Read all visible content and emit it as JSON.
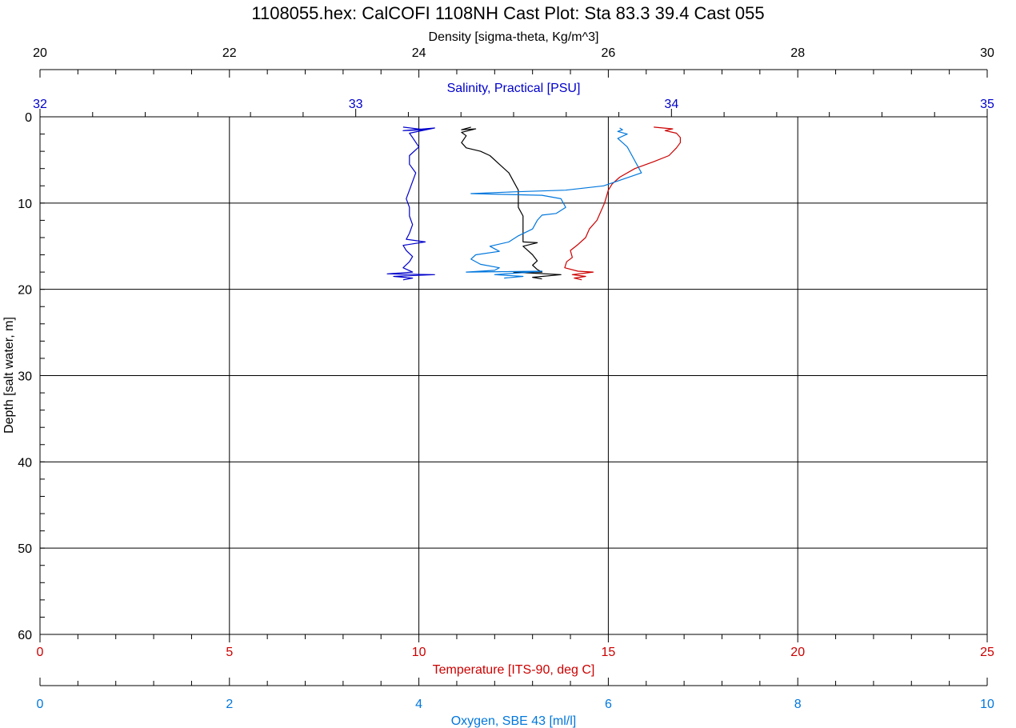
{
  "title": "1108055.hex: CalCOFI 1108NH Cast Plot:  Sta 83.3 39.4 Cast 055",
  "colors": {
    "density": "#000000",
    "salinity": "#0000cc",
    "temperature": "#cc0000",
    "oxygen": "#0077dd",
    "grid": "#000000"
  },
  "chart_data": {
    "type": "line",
    "y_axis": {
      "label": "Depth [salt water, m]",
      "range": [
        0,
        60
      ],
      "inverted": true,
      "ticks": [
        "0",
        "10",
        "20",
        "30",
        "40",
        "50",
        "60"
      ]
    },
    "axes": [
      {
        "key": "density",
        "label": "Density [sigma-theta, Kg/m^3]",
        "position": "top",
        "range": [
          20,
          30
        ],
        "ticks": [
          "20",
          "22",
          "24",
          "26",
          "28",
          "30"
        ]
      },
      {
        "key": "salinity",
        "label": "Salinity, Practical [PSU]",
        "position": "top",
        "range": [
          32,
          35
        ],
        "ticks": [
          "32",
          "33",
          "34",
          "35"
        ]
      },
      {
        "key": "temperature",
        "label": "Temperature [ITS-90, deg C]",
        "position": "bottom",
        "range": [
          0,
          25
        ],
        "ticks": [
          "0",
          "5",
          "10",
          "15",
          "20",
          "25"
        ]
      },
      {
        "key": "oxygen",
        "label": "Oxygen, SBE 43 [ml/l]",
        "position": "bottom",
        "range": [
          0,
          10
        ],
        "ticks": [
          "0",
          "2",
          "4",
          "6",
          "8",
          "10"
        ]
      }
    ],
    "grid": true,
    "series": [
      {
        "key": "density",
        "axis": "density",
        "points": [
          [
            24.55,
            1.2
          ],
          [
            24.45,
            1.5
          ],
          [
            24.6,
            1.4
          ],
          [
            24.45,
            1.8
          ],
          [
            24.5,
            2.2
          ],
          [
            24.45,
            3.0
          ],
          [
            24.5,
            3.6
          ],
          [
            24.65,
            4.0
          ],
          [
            24.75,
            4.5
          ],
          [
            24.85,
            5.5
          ],
          [
            24.95,
            6.5
          ],
          [
            25.0,
            7.5
          ],
          [
            25.05,
            8.5
          ],
          [
            25.05,
            9.5
          ],
          [
            25.05,
            10.5
          ],
          [
            25.1,
            11.5
          ],
          [
            25.1,
            12.5
          ],
          [
            25.1,
            13.5
          ],
          [
            25.1,
            14.5
          ],
          [
            25.25,
            14.6
          ],
          [
            25.1,
            15.0
          ],
          [
            25.15,
            15.5
          ],
          [
            25.2,
            16.0
          ],
          [
            25.25,
            16.7
          ],
          [
            25.2,
            17.2
          ],
          [
            25.25,
            17.7
          ],
          [
            25.3,
            18.0
          ],
          [
            25.0,
            18.0
          ],
          [
            25.5,
            18.3
          ],
          [
            25.2,
            18.6
          ],
          [
            25.3,
            18.8
          ]
        ]
      },
      {
        "key": "salinity",
        "axis": "salinity",
        "points": [
          [
            33.15,
            1.2
          ],
          [
            33.22,
            1.5
          ],
          [
            33.15,
            1.6
          ],
          [
            33.25,
            1.3
          ],
          [
            33.17,
            1.9
          ],
          [
            33.18,
            2.4
          ],
          [
            33.2,
            3.5
          ],
          [
            33.17,
            4.5
          ],
          [
            33.17,
            5.5
          ],
          [
            33.19,
            6.5
          ],
          [
            33.18,
            7.5
          ],
          [
            33.17,
            8.5
          ],
          [
            33.16,
            9.5
          ],
          [
            33.17,
            10.5
          ],
          [
            33.17,
            11.5
          ],
          [
            33.18,
            12.5
          ],
          [
            33.17,
            13.5
          ],
          [
            33.16,
            14.2
          ],
          [
            33.22,
            14.5
          ],
          [
            33.15,
            14.9
          ],
          [
            33.16,
            15.5
          ],
          [
            33.18,
            16.2
          ],
          [
            33.17,
            16.8
          ],
          [
            33.15,
            17.5
          ],
          [
            33.18,
            18.0
          ],
          [
            33.1,
            18.2
          ],
          [
            33.25,
            18.3
          ],
          [
            33.12,
            18.5
          ],
          [
            33.18,
            18.7
          ],
          [
            33.15,
            18.9
          ]
        ]
      },
      {
        "key": "temperature",
        "axis": "temperature",
        "points": [
          [
            16.2,
            1.2
          ],
          [
            16.7,
            1.4
          ],
          [
            16.5,
            1.6
          ],
          [
            16.8,
            1.9
          ],
          [
            16.9,
            2.4
          ],
          [
            16.9,
            3.0
          ],
          [
            16.8,
            3.6
          ],
          [
            16.6,
            4.5
          ],
          [
            16.2,
            5.2
          ],
          [
            15.7,
            6.0
          ],
          [
            15.3,
            7.0
          ],
          [
            15.1,
            7.8
          ],
          [
            15.0,
            8.5
          ],
          [
            14.9,
            10.0
          ],
          [
            14.8,
            11.0
          ],
          [
            14.7,
            12.0
          ],
          [
            14.5,
            13.0
          ],
          [
            14.4,
            14.0
          ],
          [
            14.2,
            14.8
          ],
          [
            14.0,
            15.5
          ],
          [
            14.05,
            16.3
          ],
          [
            13.9,
            16.8
          ],
          [
            13.85,
            17.5
          ],
          [
            14.2,
            17.9
          ],
          [
            14.6,
            18.0
          ],
          [
            14.05,
            18.3
          ],
          [
            14.4,
            18.5
          ],
          [
            14.1,
            18.7
          ],
          [
            14.3,
            18.9
          ]
        ]
      },
      {
        "key": "oxygen",
        "axis": "oxygen",
        "points": [
          [
            6.12,
            1.3
          ],
          [
            6.15,
            1.5
          ],
          [
            6.1,
            1.7
          ],
          [
            6.2,
            2.0
          ],
          [
            6.1,
            2.5
          ],
          [
            6.15,
            3.0
          ],
          [
            6.2,
            3.5
          ],
          [
            6.25,
            4.5
          ],
          [
            6.3,
            5.5
          ],
          [
            6.35,
            6.5
          ],
          [
            5.95,
            8.0
          ],
          [
            5.55,
            8.5
          ],
          [
            5.0,
            8.7
          ],
          [
            4.55,
            8.9
          ],
          [
            5.3,
            9.1
          ],
          [
            5.5,
            9.5
          ],
          [
            5.55,
            10.5
          ],
          [
            5.45,
            11.2
          ],
          [
            5.3,
            11.4
          ],
          [
            5.25,
            12.0
          ],
          [
            5.2,
            13.0
          ],
          [
            5.05,
            13.8
          ],
          [
            4.95,
            14.5
          ],
          [
            4.75,
            15.0
          ],
          [
            4.85,
            15.6
          ],
          [
            4.6,
            16.0
          ],
          [
            4.55,
            16.5
          ],
          [
            4.65,
            17.1
          ],
          [
            4.85,
            17.5
          ],
          [
            4.8,
            17.8
          ],
          [
            4.5,
            18.0
          ],
          [
            5.3,
            17.9
          ],
          [
            4.8,
            18.3
          ],
          [
            5.1,
            18.5
          ],
          [
            4.9,
            18.7
          ]
        ]
      }
    ]
  }
}
